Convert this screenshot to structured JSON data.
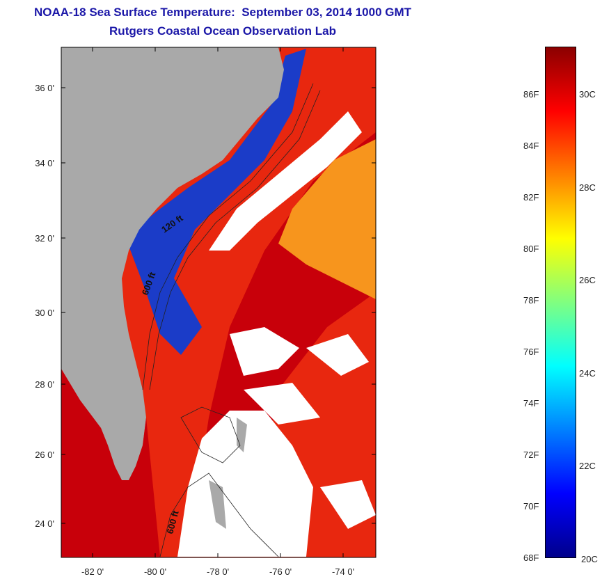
{
  "header": {
    "title": "NOAA-18 Sea Surface Temperature:  September 03, 2014 1000 GMT",
    "subtitle": "Rutgers Coastal Ocean Observation Lab"
  },
  "map": {
    "lon_ticks": [
      "-82 0'",
      "-80 0'",
      "-78 0'",
      "-76 0'",
      "-74 0'"
    ],
    "lat_ticks": [
      "36 0'",
      "34 0'",
      "32 0'",
      "30 0'",
      "28 0'",
      "26 0'",
      "24 0'"
    ],
    "isobath_labels": [
      "120 ft",
      "600 ft",
      "600 ft"
    ],
    "colors": {
      "land": "#a9a9a9",
      "cloud": "#ffffff",
      "warm_water": "#e8270f",
      "hot_water": "#c8000a",
      "mid_water": "#f7951d",
      "cool_water": "#1b3cc8"
    }
  },
  "colorbar": {
    "fahrenheit": [
      "86F",
      "84F",
      "82F",
      "80F",
      "78F",
      "76F",
      "74F",
      "72F",
      "70F",
      "68F"
    ],
    "celsius": [
      "30C",
      "28C",
      "26C",
      "24C",
      "22C",
      "20C"
    ],
    "range_f": [
      68,
      88
    ],
    "stops": [
      "#00008b",
      "#0000ff",
      "#0080ff",
      "#00ffff",
      "#80ff80",
      "#ffff00",
      "#ff8000",
      "#ff0000",
      "#8b0000"
    ]
  }
}
